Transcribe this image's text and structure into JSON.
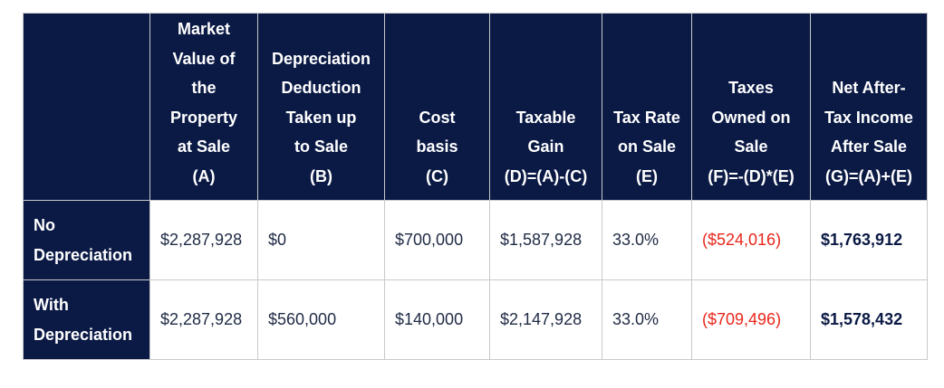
{
  "columns": [
    {
      "lines": [
        "Market",
        "Value of",
        "the",
        "Property",
        "at Sale",
        "(A)"
      ]
    },
    {
      "lines": [
        "Depreciation",
        "Deduction",
        "Taken up",
        "to Sale",
        "(B)"
      ]
    },
    {
      "lines": [
        "Cost",
        "basis",
        "(C)"
      ]
    },
    {
      "lines": [
        "Taxable",
        "Gain",
        "(D)=(A)-(C)"
      ]
    },
    {
      "lines": [
        "Tax Rate",
        "on Sale",
        "(E)"
      ]
    },
    {
      "lines": [
        "Taxes",
        "Owned on",
        "Sale",
        "(F)=-(D)*(E)"
      ]
    },
    {
      "lines": [
        "Net After-",
        "Tax Income",
        "After Sale",
        "(G)=(A)+(E)"
      ]
    }
  ],
  "rows": [
    {
      "label_lines": [
        "No",
        "Depreciation"
      ],
      "cells": [
        "$2,287,928",
        "$0",
        "$700,000",
        "$1,587,928",
        "33.0%",
        "($524,016)",
        "$1,763,912"
      ]
    },
    {
      "label_lines": [
        "With",
        "Depreciation"
      ],
      "cells": [
        "$2,287,928",
        "$560,000",
        "$140,000",
        "$2,147,928",
        "33.0%",
        "($709,496)",
        "$1,578,432"
      ]
    }
  ],
  "colors": {
    "header_bg": "#0b1a45",
    "header_text": "#ffffff",
    "negative": "#e8261b",
    "body_text": "#1f2a44",
    "border": "#c9c9c9"
  }
}
